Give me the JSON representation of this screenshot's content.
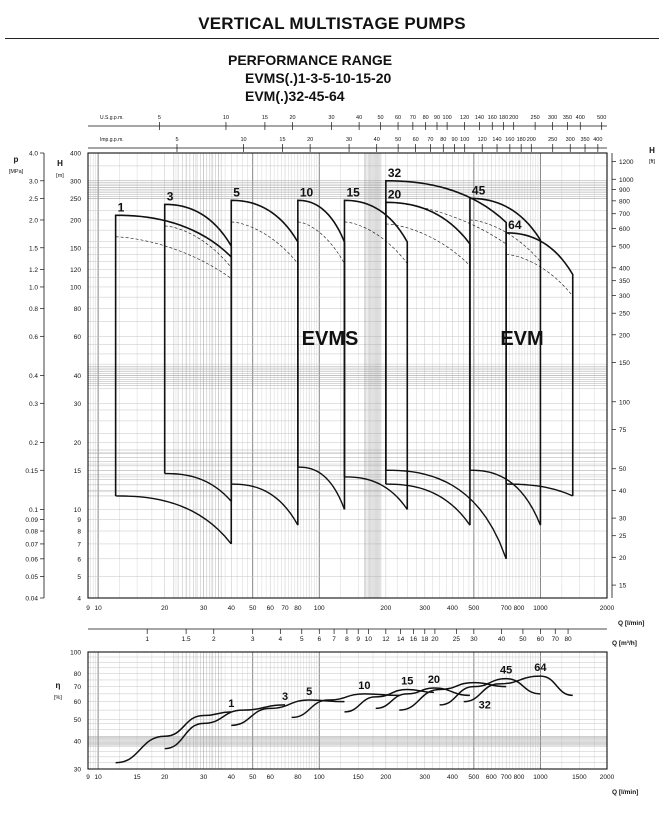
{
  "title": "VERTICAL MULTISTAGE PUMPS",
  "subtitle": {
    "line1": "PERFORMANCE RANGE",
    "line2": "EVMS(.)1-3-5-10-15-20",
    "line3": "EVM(.)32-45-64"
  },
  "colors": {
    "ink": "#111111",
    "grid_fine": "#c4c4c4",
    "grid_major": "#7a7a7a",
    "dense_band": "#9a9a9a"
  },
  "chart_data": [
    {
      "type": "line",
      "name_shown": "performance",
      "x_scale": "log",
      "y_scale": "log",
      "xlim": [
        9,
        2000
      ],
      "ylim_H_m": [
        4,
        400
      ],
      "grid": true,
      "top_axis_usgpm": {
        "label": "U.S.g.p.m.",
        "ticks": [
          "5",
          "10",
          "15",
          "20",
          "30",
          "40",
          "50",
          "60",
          "70",
          "80",
          "90",
          "100",
          "120",
          "140",
          "160",
          "180",
          "200",
          "250",
          "300",
          "350",
          "400",
          "500"
        ]
      },
      "top_axis_impgpm": {
        "label": "Imp.g.p.m.",
        "ticks": [
          "5",
          "10",
          "15",
          "20",
          "30",
          "40",
          "50",
          "60",
          "70",
          "80",
          "90",
          "100",
          "120",
          "140",
          "160",
          "180",
          "200",
          "250",
          "300",
          "350",
          "400"
        ]
      },
      "left_axis_p": {
        "label": "p",
        "unit": "[MPa]",
        "ticks": [
          "4.0",
          "3.0",
          "2.5",
          "2.0",
          "1.5",
          "1.2",
          "1.0",
          "0.8",
          "0.6",
          "0.4",
          "0.3",
          "0.2",
          "0.15",
          "0.1",
          "0.09",
          "0.08",
          "0.07",
          "0.06",
          "0.05",
          "0.04"
        ]
      },
      "left_axis_H": {
        "label": "H",
        "unit": "[m]",
        "ticks": [
          "400",
          "300",
          "250",
          "200",
          "150",
          "120",
          "100",
          "80",
          "60",
          "40",
          "30",
          "20",
          "15",
          "10",
          "9",
          "8",
          "7",
          "6",
          "5",
          "4"
        ]
      },
      "right_axis_H_ft": {
        "label": "H",
        "unit": "[ft]",
        "ticks": [
          "1200",
          "1000",
          "900",
          "800",
          "700",
          "600",
          "500",
          "400",
          "350",
          "300",
          "250",
          "200",
          "150",
          "100",
          "75",
          "50",
          "40",
          "30",
          "25",
          "20",
          "15"
        ]
      },
      "bottom_axis_lmin": {
        "label": "Q [l/min]",
        "ticks": [
          "9",
          "10",
          "20",
          "30",
          "40",
          "50",
          "60",
          "70",
          "80",
          "100",
          "200",
          "300",
          "400",
          "500",
          "700",
          "800",
          "1000",
          "2000"
        ]
      },
      "bottom_axis_m3h": {
        "label": "Q [m³/h]",
        "ticks": [
          "1",
          "1.5",
          "2",
          "3",
          "4",
          "5",
          "6",
          "7",
          "8",
          "9",
          "10",
          "12",
          "14",
          "16",
          "18",
          "20",
          "25",
          "30",
          "40",
          "50",
          "60",
          "70",
          "80"
        ]
      },
      "region_labels": [
        "EVMS",
        "EVM"
      ],
      "series": [
        {
          "name": "1",
          "q_range": [
            12,
            40
          ],
          "H_max": 210,
          "H_min": 11.5,
          "H_end_min": 7
        },
        {
          "name": "3",
          "q_range": [
            20,
            40
          ],
          "H_max": 235,
          "H_min": 14.5
        },
        {
          "name": "5",
          "q_range": [
            40,
            80
          ],
          "H_max": 245,
          "H_min": 13,
          "H_end_min": 8.5
        },
        {
          "name": "10",
          "q_range": [
            80,
            130
          ],
          "H_max": 245,
          "H_min": 15.5,
          "H_end_min": 10
        },
        {
          "name": "15",
          "q_range": [
            130,
            250
          ],
          "H_max": 245,
          "H_min": 14,
          "H_end_min": 10
        },
        {
          "name": "20",
          "q_range": [
            200,
            480
          ],
          "H_max": 240,
          "H_min": 13,
          "H_end_min": 8.5
        },
        {
          "name": "32",
          "q_range": [
            200,
            700
          ],
          "H_max": 300,
          "H_min": 15,
          "H_end_min": 6
        },
        {
          "name": "45",
          "q_range": [
            480,
            1000
          ],
          "H_max": 250,
          "H_min": 15,
          "H_end_min": 8.5
        },
        {
          "name": "64",
          "q_range": [
            700,
            1400
          ],
          "H_max": 175,
          "H_min": 13,
          "H_end_min": 11.5
        }
      ]
    },
    {
      "type": "line",
      "name_shown": "efficiency",
      "x_scale": "log",
      "xlim": [
        9,
        2000
      ],
      "ylim": [
        30,
        100
      ],
      "grid": true,
      "y_axis": {
        "label": "η",
        "unit": "[%]",
        "ticks": [
          "100",
          "80",
          "70",
          "60",
          "50",
          "40",
          "30"
        ]
      },
      "bottom_axis_lmin": {
        "label": "Q [l/min]",
        "ticks": [
          "9",
          "10",
          "15",
          "20",
          "30",
          "40",
          "50",
          "60",
          "80",
          "100",
          "150",
          "200",
          "300",
          "400",
          "500",
          "600",
          "700",
          "800",
          "1000",
          "1500",
          "2000"
        ]
      },
      "series": [
        {
          "name": "1",
          "q": [
            12,
            20,
            30,
            40
          ],
          "eta": [
            32,
            42,
            52,
            54
          ]
        },
        {
          "name": "3",
          "q": [
            20,
            30,
            45,
            70
          ],
          "eta": [
            37,
            48,
            55,
            58
          ]
        },
        {
          "name": "5",
          "q": [
            40,
            60,
            90,
            130
          ],
          "eta": [
            47,
            56,
            61,
            60
          ]
        },
        {
          "name": "10",
          "q": [
            75,
            110,
            160,
            230
          ],
          "eta": [
            51,
            61,
            65,
            64
          ]
        },
        {
          "name": "15",
          "q": [
            130,
            180,
            250,
            330
          ],
          "eta": [
            54,
            63,
            68,
            66
          ]
        },
        {
          "name": "20",
          "q": [
            180,
            250,
            330,
            480
          ],
          "eta": [
            56,
            65,
            69,
            64
          ]
        },
        {
          "name": "32",
          "q": [
            230,
            350,
            500,
            700
          ],
          "eta": [
            55,
            68,
            73,
            70
          ]
        },
        {
          "name": "45",
          "q": [
            350,
            500,
            700,
            1000
          ],
          "eta": [
            58,
            70,
            76,
            65
          ]
        },
        {
          "name": "64",
          "q": [
            450,
            650,
            1000,
            1400
          ],
          "eta": [
            60,
            72,
            78,
            64
          ]
        }
      ]
    }
  ]
}
